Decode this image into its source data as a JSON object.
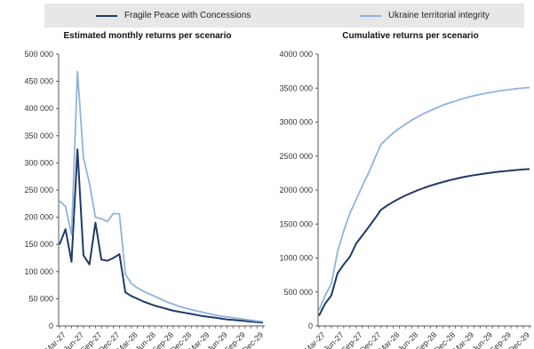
{
  "legend": {
    "items": [
      {
        "label": "Fragile Peace with Concessions",
        "color": "#1f3a68"
      },
      {
        "label": "Ukraine territorial integrity",
        "color": "#8fb3dd"
      }
    ]
  },
  "chart_data": [
    {
      "type": "line",
      "title": "Estimated monthly returns per scenario",
      "xlabel": "",
      "ylabel": "",
      "ylim": [
        0,
        500000
      ],
      "yticks": [
        0,
        50000,
        100000,
        150000,
        200000,
        250000,
        300000,
        350000,
        400000,
        450000,
        500000
      ],
      "ytick_labels": [
        "0",
        "50 000",
        "100 000",
        "150 000",
        "200 000",
        "250 000",
        "300 000",
        "350 000",
        "400 000",
        "450 000",
        "500 000"
      ],
      "xtick_labels": [
        "Mar-27",
        "Jun-27",
        "Sep-27",
        "Dec-27",
        "Mar-28",
        "Jun-28",
        "Sep-28",
        "Dec-28",
        "Mar-29",
        "Jun-29",
        "Sep-29",
        "Dec-29"
      ],
      "x": [
        "Mar-27",
        "Apr-27",
        "May-27",
        "Jun-27",
        "Jul-27",
        "Aug-27",
        "Sep-27",
        "Oct-27",
        "Nov-27",
        "Dec-27",
        "Jan-28",
        "Feb-28",
        "Mar-28",
        "Apr-28",
        "May-28",
        "Jun-28",
        "Jul-28",
        "Aug-28",
        "Sep-28",
        "Oct-28",
        "Nov-28",
        "Dec-28",
        "Jan-29",
        "Feb-29",
        "Mar-29",
        "Apr-29",
        "May-29",
        "Jun-29",
        "Jul-29",
        "Aug-29",
        "Sep-29",
        "Oct-29",
        "Nov-29",
        "Dec-29",
        "Jan-30"
      ],
      "grid": false,
      "series": [
        {
          "values": [
            150000,
            178000,
            118000,
            325000,
            130000,
            113000,
            190000,
            122000,
            120000,
            125000,
            132000,
            62000,
            55000,
            50000,
            45000,
            41000,
            37000,
            34000,
            31000,
            28000,
            26000,
            24000,
            22000,
            20000,
            18000,
            16500,
            15000,
            13500,
            12000,
            11000,
            10000,
            9000,
            8000,
            7000,
            6000
          ]
        },
        {
          "values": [
            230000,
            220000,
            168000,
            468000,
            310000,
            262000,
            200000,
            197000,
            192000,
            207000,
            206000,
            95000,
            78000,
            70000,
            64000,
            59000,
            54000,
            49000,
            44000,
            40000,
            36000,
            33000,
            30000,
            27500,
            25000,
            22500,
            20000,
            18000,
            16500,
            15000,
            13500,
            12000,
            10500,
            9000,
            8000
          ]
        }
      ]
    },
    {
      "type": "line",
      "title": "Cumulative returns per scenario",
      "xlabel": "",
      "ylabel": "",
      "ylim": [
        0,
        4000000
      ],
      "yticks": [
        0,
        500000,
        1000000,
        1500000,
        2000000,
        2500000,
        3000000,
        3500000,
        4000000
      ],
      "ytick_labels": [
        "0",
        "500 000",
        "1000 000",
        "1500 000",
        "2000 000",
        "2500 000",
        "3000 000",
        "3500 000",
        "4000 000"
      ],
      "xtick_labels": [
        "Mar-27",
        "Jun-27",
        "Sep-27",
        "Dec-27",
        "Mar-28",
        "Jun-28",
        "Sep-28",
        "Dec-28",
        "Mar-29",
        "Jun-29",
        "Sep-29",
        "Dec-29"
      ],
      "x": [
        "Mar-27",
        "Apr-27",
        "May-27",
        "Jun-27",
        "Jul-27",
        "Aug-27",
        "Sep-27",
        "Oct-27",
        "Nov-27",
        "Dec-27",
        "Jan-28",
        "Feb-28",
        "Mar-28",
        "Apr-28",
        "May-28",
        "Jun-28",
        "Jul-28",
        "Aug-28",
        "Sep-28",
        "Oct-28",
        "Nov-28",
        "Dec-28",
        "Jan-29",
        "Feb-29",
        "Mar-29",
        "Apr-29",
        "May-29",
        "Jun-29",
        "Jul-29",
        "Aug-29",
        "Sep-29",
        "Oct-29",
        "Nov-29",
        "Dec-29",
        "Jan-30"
      ],
      "grid": false,
      "series": [
        {
          "values": [
            150000,
            330000,
            450000,
            775000,
            905000,
            1020000,
            1210000,
            1332000,
            1452000,
            1577000,
            1709000,
            1771000,
            1826000,
            1876000,
            1921000,
            1962000,
            1999000,
            2033000,
            2064000,
            2092000,
            2118000,
            2142000,
            2164000,
            2184000,
            2202000,
            2218000,
            2233000,
            2246000,
            2258000,
            2269000,
            2279000,
            2288000,
            2296000,
            2303000,
            2309000
          ]
        },
        {
          "values": [
            230000,
            450000,
            620000,
            1090000,
            1400000,
            1660000,
            1860000,
            2060000,
            2250000,
            2460000,
            2670000,
            2760000,
            2840000,
            2910000,
            2970000,
            3030000,
            3080000,
            3130000,
            3170000,
            3210000,
            3250000,
            3280000,
            3310000,
            3340000,
            3365000,
            3387000,
            3407000,
            3425000,
            3442000,
            3457000,
            3470000,
            3482000,
            3493000,
            3502000,
            3510000
          ]
        }
      ]
    }
  ]
}
